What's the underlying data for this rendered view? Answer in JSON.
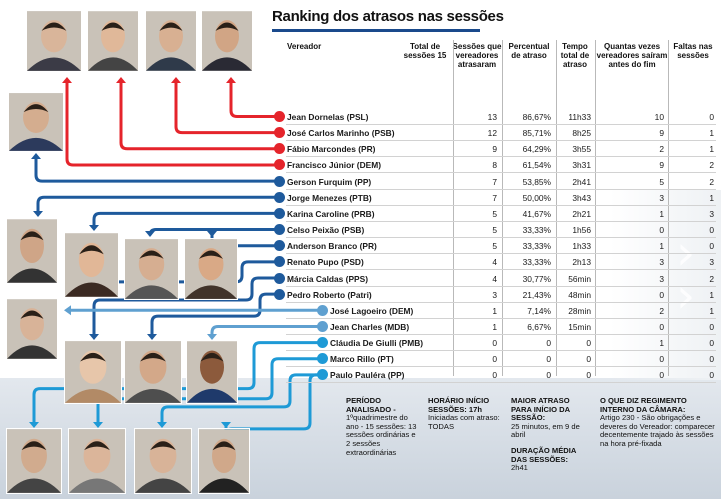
{
  "title": "Ranking dos atrasos nas sessões",
  "headers": {
    "vereador": "Vereador",
    "total_sessoes": "Total de sessões 15",
    "sessoes_atrasaram": "Sessões que vereadores atrasaram",
    "percentual": "Percentual de atraso",
    "tempo_total": "Tempo total de atraso",
    "saidas": "Quantas vezes vereadores saíram antes do fim",
    "faltas": "Faltas nas sessões"
  },
  "rows": [
    {
      "name": "Jean Dornelas (PSL)",
      "sessoes": "13",
      "percentual": "86,67%",
      "tempo": "11h33",
      "saidas": "10",
      "faltas": "0"
    },
    {
      "name": "José Carlos Marinho (PSB)",
      "sessoes": "12",
      "percentual": "85,71%",
      "tempo": "8h25",
      "saidas": "9",
      "faltas": "1"
    },
    {
      "name": "Fábio Marcondes (PR)",
      "sessoes": "9",
      "percentual": "64,29%",
      "tempo": "3h55",
      "saidas": "2",
      "faltas": "1"
    },
    {
      "name": "Francisco Júnior (DEM)",
      "sessoes": "8",
      "percentual": "61,54%",
      "tempo": "3h31",
      "saidas": "9",
      "faltas": "2"
    },
    {
      "name": "Gerson Furquim (PP)",
      "sessoes": "7",
      "percentual": "53,85%",
      "tempo": "2h41",
      "saidas": "5",
      "faltas": "2"
    },
    {
      "name": "Jorge Menezes (PTB)",
      "sessoes": "7",
      "percentual": "50,00%",
      "tempo": "3h43",
      "saidas": "3",
      "faltas": "1"
    },
    {
      "name": "Karina Caroline (PRB)",
      "sessoes": "5",
      "percentual": "41,67%",
      "tempo": "2h21",
      "saidas": "1",
      "faltas": "3"
    },
    {
      "name": "Celso Peixão (PSB)",
      "sessoes": "5",
      "percentual": "33,33%",
      "tempo": "1h56",
      "saidas": "0",
      "faltas": "0"
    },
    {
      "name": "Anderson Branco (PR)",
      "sessoes": "5",
      "percentual": "33,33%",
      "tempo": "1h33",
      "saidas": "1",
      "faltas": "0"
    },
    {
      "name": "Renato Pupo (PSD)",
      "sessoes": "4",
      "percentual": "33,33%",
      "tempo": "2h13",
      "saidas": "3",
      "faltas": "3"
    },
    {
      "name": "Márcia Caldas (PPS)",
      "sessoes": "4",
      "percentual": "30,77%",
      "tempo": "56min",
      "saidas": "3",
      "faltas": "2"
    },
    {
      "name": "Pedro Roberto (Patri)",
      "sessoes": "3",
      "percentual": "21,43%",
      "tempo": "48min",
      "saidas": "0",
      "faltas": "1"
    },
    {
      "name": "José Lagoeiro (DEM)",
      "sessoes": "1",
      "percentual": "7,14%",
      "tempo": "28min",
      "saidas": "2",
      "faltas": "1"
    },
    {
      "name": "Jean Charles (MDB)",
      "sessoes": "1",
      "percentual": "6,67%",
      "tempo": "15min",
      "saidas": "0",
      "faltas": "0"
    },
    {
      "name": "Cláudia De Giulli (PMB)",
      "sessoes": "0",
      "percentual": "0",
      "tempo": "0",
      "saidas": "1",
      "faltas": "0"
    },
    {
      "name": "Marco Rillo (PT)",
      "sessoes": "0",
      "percentual": "0",
      "tempo": "0",
      "saidas": "0",
      "faltas": "0"
    },
    {
      "name": "Paulo Pauléra (PP)",
      "sessoes": "0",
      "percentual": "0",
      "tempo": "0",
      "saidas": "0",
      "faltas": "0"
    }
  ],
  "colors": {
    "red": "#e5242b",
    "navy": "#1e5a9c",
    "light_blue": "#5fa0d0",
    "cyan": "#1e9ad6",
    "title_rule": "#1a4a8c"
  },
  "info": {
    "periodo": {
      "label": "PERÍODO ANALISADO -",
      "value": "1ºquadrimestre do ano - 15 sessões: 13 sessões ordinárias e 2 sessões extraordinárias"
    },
    "horario": {
      "label": "HORÁRIO INÍCIO SESSÕES: 17h",
      "value": "Iniciadas com atraso: TODAS"
    },
    "maior_atraso": {
      "label": "MAIOR ATRASO PARA INÍCIO DA SESSÃO:",
      "value": "25 minutos, em 9 de abril"
    },
    "duracao": {
      "label": "DURAÇÃO MÉDIA DAS SESSÕES:",
      "value": "2h41"
    },
    "regimento": {
      "label": "O QUE DIZ REGIMENTO INTERNO DA CÂMARA:",
      "value": "Artigo 230 - São obrigações e deveres do Vereador: comparecer decentemente trajado às sessões na hora pré-fixada"
    }
  }
}
